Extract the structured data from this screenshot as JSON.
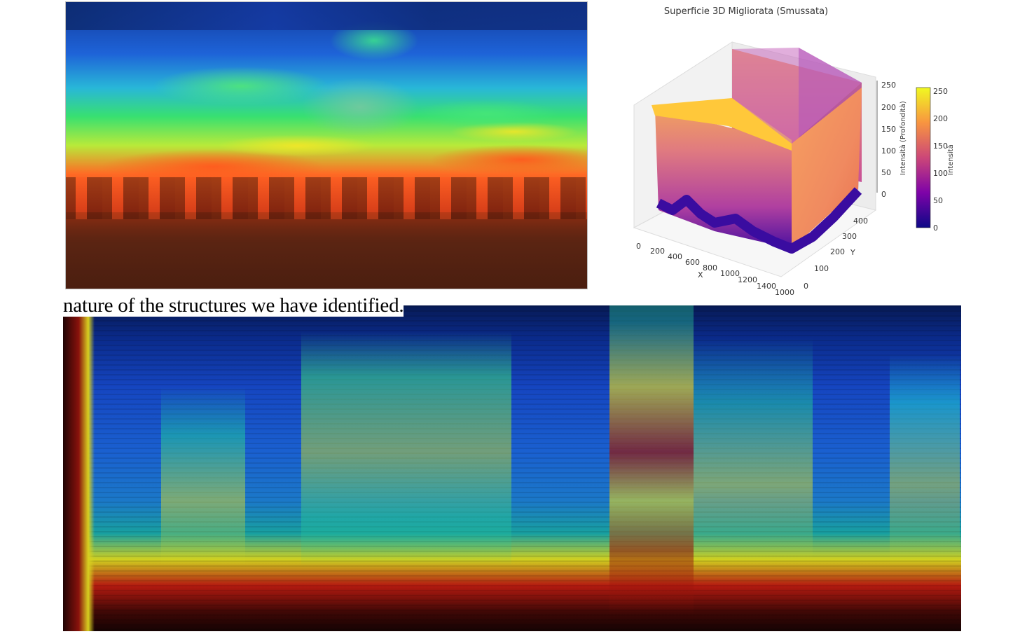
{
  "caption": {
    "text": "nature of the structures we have identified."
  },
  "surface_chart": {
    "title": "Superficie 3D Migliorata (Smussata)",
    "x_label": "X",
    "y_label": "Y",
    "z_label": "Intensità (Profondità)",
    "colorbar_label": "Intensità",
    "x_ticks": [
      "0",
      "200",
      "400",
      "600",
      "800",
      "1000",
      "1200",
      "1400"
    ],
    "y_ticks": [
      "0",
      "100",
      "200",
      "300",
      "400"
    ],
    "z_ticks": [
      "0",
      "50",
      "100",
      "150",
      "200",
      "250"
    ],
    "colorbar_ticks": [
      "0",
      "50",
      "100",
      "150",
      "200",
      "250"
    ],
    "x_end_tick": "1000",
    "colormap": [
      "#0d0887",
      "#7e03a8",
      "#cc4778",
      "#f89540",
      "#f0f921"
    ]
  },
  "images": {
    "heatmap_top": "false-color-heatmap",
    "spectrogram": "false-color-spectrogram"
  }
}
